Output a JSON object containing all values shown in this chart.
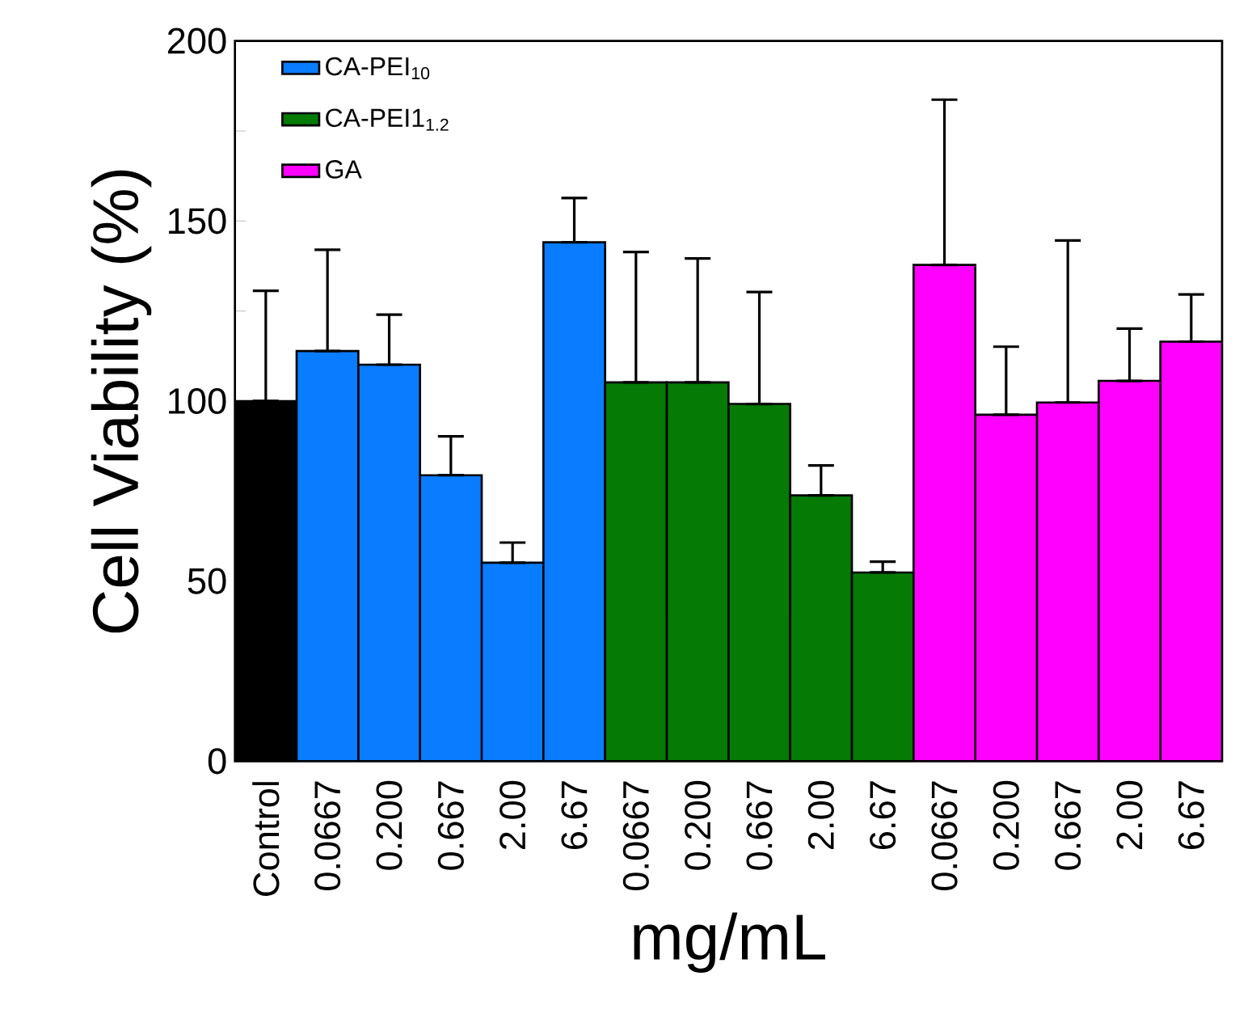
{
  "chart_data": {
    "type": "bar",
    "xlabel": "mg/mL",
    "ylabel": "Cell Viability (%)",
    "categories": [
      "Control",
      "0.0667",
      "0.200",
      "0.667",
      "2.00",
      "6.67",
      "0.0667",
      "0.200",
      "0.667",
      "2.00",
      "6.67",
      "0.0667",
      "0.200",
      "0.667",
      "2.00",
      "6.67"
    ],
    "series": [
      {
        "color": "#000000",
        "values": [
          100,
          null,
          null,
          null,
          null,
          null,
          null,
          null,
          null,
          null,
          null,
          null,
          null,
          null,
          null,
          null
        ],
        "errors": [
          [
            100,
            130.6
          ],
          null,
          null,
          null,
          null,
          null,
          null,
          null,
          null,
          null,
          null,
          null,
          null,
          null,
          null,
          null
        ]
      },
      {
        "name": "CA-PEI$_{10}$",
        "color": "#0a7cff",
        "values": [
          null,
          113.9,
          110.1,
          79.4,
          55.1,
          144.1,
          null,
          null,
          null,
          null,
          null,
          null,
          null,
          null,
          null,
          null
        ],
        "errors": [
          null,
          [
            113.9,
            142
          ],
          [
            110.1,
            124
          ],
          [
            79.4,
            90.2
          ],
          [
            55.1,
            60.7
          ],
          [
            144.1,
            156.4
          ],
          null,
          null,
          null,
          null,
          null,
          null,
          null,
          null,
          null,
          null
        ]
      },
      {
        "name": "CA-PEI1$_{1.2}$",
        "color": "#057a05",
        "values": [
          null,
          null,
          null,
          null,
          null,
          null,
          105.2,
          105.2,
          99.2,
          73.8,
          52.4,
          null,
          null,
          null,
          null,
          null
        ],
        "errors": [
          null,
          null,
          null,
          null,
          null,
          null,
          [
            105.2,
            141.4
          ],
          [
            105.2,
            139.6
          ],
          [
            99.2,
            130.3
          ],
          [
            73.8,
            82.1
          ],
          [
            52.4,
            55.4
          ],
          null,
          null,
          null,
          null,
          null
        ]
      },
      {
        "name": "GA",
        "color": "#ff00ff",
        "values": [
          null,
          null,
          null,
          null,
          null,
          null,
          null,
          null,
          null,
          null,
          null,
          137.8,
          96.2,
          99.6,
          105.6,
          116.5
        ],
        "errors": [
          null,
          null,
          null,
          null,
          null,
          null,
          null,
          null,
          null,
          null,
          null,
          [
            137.8,
            183.7
          ],
          [
            96.2,
            115.1
          ],
          [
            99.6,
            144.6
          ],
          [
            105.6,
            120.1
          ],
          [
            116.5,
            129.6
          ]
        ]
      }
    ],
    "ylim": [
      0,
      200
    ],
    "yticks": [
      0,
      {
        "value": 25,
        "label": null
      },
      50,
      {
        "value": 75,
        "label": null
      },
      100,
      {
        "value": 125,
        "label": null
      },
      150,
      {
        "value": 175,
        "label": null
      },
      200
    ],
    "legend": "top left"
  }
}
